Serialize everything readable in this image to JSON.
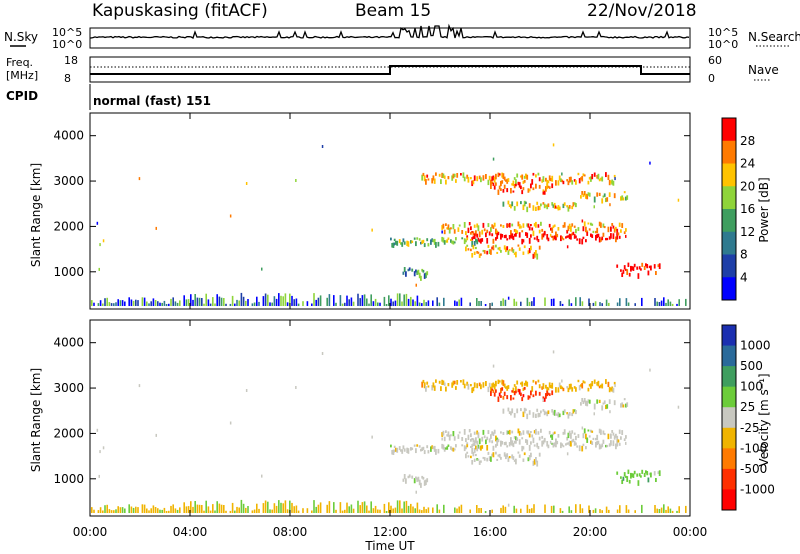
{
  "header": {
    "station": "Kapuskasing (fitACF)",
    "beam": "Beam 15",
    "date": "22/Nov/2018"
  },
  "top_panels": {
    "nsky_label": "N.Sky",
    "nsky_ticks": [
      "10^5",
      "10^0"
    ],
    "nsearch_label": "N.Search",
    "freq_label_1": "Freq.",
    "freq_label_2": "[MHz]",
    "freq_ticks": [
      "18",
      "8"
    ],
    "nave_label": "Nave",
    "nave_ticks": [
      "60",
      "0"
    ],
    "cpid_label": "CPID",
    "cpid_text": "normal (fast) 151"
  },
  "chart_data": [
    {
      "type": "heatmap",
      "name": "power",
      "ylabel": "Slant Range [km]",
      "yticks": [
        "4000",
        "3000",
        "2000",
        "1000"
      ],
      "ylim": [
        180,
        4500
      ],
      "colorbar_label": "Power [dB]",
      "colorbar_ticks": [
        "28",
        "24",
        "20",
        "16",
        "12",
        "8",
        "4"
      ],
      "colorbar_colors": [
        "#ff0000",
        "#ff7a00",
        "#ffc300",
        "#8fd43a",
        "#3f9e5f",
        "#2f7a8f",
        "#1e3fa8",
        "#0000ff"
      ]
    },
    {
      "type": "heatmap",
      "name": "velocity",
      "ylabel": "Slant Range [km]",
      "yticks": [
        "4000",
        "3000",
        "2000",
        "1000"
      ],
      "ylim": [
        180,
        4500
      ],
      "colorbar_label": "Velocity [m s⁻¹]",
      "colorbar_ticks": [
        "1000",
        "500",
        "100",
        "25",
        "-25",
        "-100",
        "-500",
        "-1000"
      ],
      "colorbar_colors": [
        "#1b2fb0",
        "#2a6a9a",
        "#3f9e5f",
        "#6ccc3a",
        "#c8c8c0",
        "#f0b400",
        "#ff7a00",
        "#ff3000",
        "#ff0000"
      ]
    }
  ],
  "xaxis": {
    "ticks": [
      "00:00",
      "04:00",
      "08:00",
      "12:00",
      "16:00",
      "20:00",
      "00:00"
    ],
    "label": "Time UT"
  }
}
